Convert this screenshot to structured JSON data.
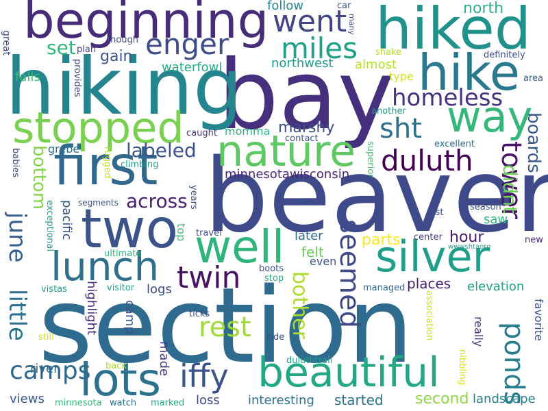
{
  "words": [
    {
      "text": "section",
      "color": "#2f6b8e"
    },
    {
      "text": "beaver",
      "color": "#3f4a8a"
    },
    {
      "text": "bay",
      "color": "#46307e"
    },
    {
      "text": "hiking",
      "color": "#25858e"
    },
    {
      "text": "hiked",
      "color": "#21918c"
    },
    {
      "text": "beginning",
      "color": "#472c7a"
    },
    {
      "text": "hike",
      "color": "#2a788e"
    },
    {
      "text": "first",
      "color": "#31688e"
    },
    {
      "text": "two",
      "color": "#3b528b"
    },
    {
      "text": "stopped",
      "color": "#7ad151"
    },
    {
      "text": "nature",
      "color": "#5ec962"
    },
    {
      "text": "way",
      "color": "#35b779"
    },
    {
      "text": "well",
      "color": "#2fb47c"
    },
    {
      "text": "silver",
      "color": "#1f9e89"
    },
    {
      "text": "lots",
      "color": "#2c728e"
    },
    {
      "text": "lunch",
      "color": "#2e6f8e"
    },
    {
      "text": "beautiful",
      "color": "#22a884"
    },
    {
      "text": "went",
      "color": "#414487"
    },
    {
      "text": "enger",
      "color": "#3e4c8a"
    },
    {
      "text": "miles",
      "color": "#1fa187"
    },
    {
      "text": "homeless",
      "color": "#46337f"
    },
    {
      "text": "duluth",
      "color": "#440154"
    },
    {
      "text": "sht",
      "color": "#2c728e"
    },
    {
      "text": "tower",
      "color": "#481467"
    },
    {
      "text": "boards",
      "color": "#38588c"
    },
    {
      "text": "ponds",
      "color": "#277f8e"
    },
    {
      "text": "twin",
      "color": "#471164"
    },
    {
      "text": "iffy",
      "color": "#3b528b"
    },
    {
      "text": "little",
      "color": "#2d708e"
    },
    {
      "text": "june",
      "color": "#355f8d"
    },
    {
      "text": "camps",
      "color": "#31688e"
    },
    {
      "text": "rest",
      "color": "#a0da39"
    },
    {
      "text": "seemed",
      "color": "#3e4a89"
    },
    {
      "text": "across",
      "color": "#482173"
    },
    {
      "text": "bottom",
      "color": "#84d44b"
    },
    {
      "text": "labeled",
      "color": "#3b528b"
    },
    {
      "text": "set",
      "color": "#31b57b"
    },
    {
      "text": "gain",
      "color": "#3a548c"
    },
    {
      "text": "north",
      "color": "#2db27d"
    },
    {
      "text": "follow",
      "color": "#25848e"
    },
    {
      "text": "northwest",
      "color": "#1f998a"
    },
    {
      "text": "almost",
      "color": "#b5de2b"
    },
    {
      "text": "waterfowl",
      "color": "#25ab82"
    },
    {
      "text": "falls",
      "color": "#3fbc73"
    },
    {
      "text": "marshy",
      "color": "#3d4e8a"
    },
    {
      "text": "minnesotawisconsin",
      "color": "#482878"
    },
    {
      "text": "hour",
      "color": "#48186a"
    },
    {
      "text": "bother",
      "color": "#addc30"
    },
    {
      "text": "parts",
      "color": "#fde725"
    },
    {
      "text": "felt",
      "color": "#6ccd5a"
    },
    {
      "text": "later",
      "color": "#31688e"
    },
    {
      "text": "even",
      "color": "#3b528b"
    },
    {
      "text": "places",
      "color": "#481f70"
    },
    {
      "text": "elevation",
      "color": "#1fa088"
    },
    {
      "text": "pacific",
      "color": "#3b528b"
    },
    {
      "text": "logs",
      "color": "#3d4d8a"
    },
    {
      "text": "highlight",
      "color": "#472d7b"
    },
    {
      "text": "made",
      "color": "#453882"
    },
    {
      "text": "camp",
      "color": "#3b528b"
    },
    {
      "text": "second",
      "color": "#8fd744"
    },
    {
      "text": "started",
      "color": "#2c738e"
    },
    {
      "text": "loss",
      "color": "#3f4788"
    },
    {
      "text": "interesting",
      "color": "#2c728e"
    },
    {
      "text": "landscape",
      "color": "#277f8e"
    },
    {
      "text": "views",
      "color": "#38588c"
    },
    {
      "text": "river",
      "color": "#31688e"
    },
    {
      "text": "didnt",
      "color": "#6ece58"
    },
    {
      "text": "saw",
      "color": "#31b57b"
    },
    {
      "text": "favorite",
      "color": "#3b528b"
    },
    {
      "text": "really",
      "color": "#46337f"
    },
    {
      "text": "shake",
      "color": "#b8de29"
    },
    {
      "text": "type",
      "color": "#d2e21b"
    },
    {
      "text": "definitely",
      "color": "#3e4989"
    },
    {
      "text": "area",
      "color": "#355f8d"
    },
    {
      "text": "another",
      "color": "#1f9a8a"
    },
    {
      "text": "excellent",
      "color": "#2d708e"
    },
    {
      "text": "superior",
      "color": "#44bf70"
    },
    {
      "text": "top",
      "color": "#3fbc73"
    },
    {
      "text": "season",
      "color": "#3b528b"
    },
    {
      "text": "last",
      "color": "#3e4c8a"
    },
    {
      "text": "center",
      "color": "#433e85"
    },
    {
      "text": "wwwshtaorg",
      "color": "#1f9e89"
    },
    {
      "text": "new",
      "color": "#482475"
    },
    {
      "text": "car",
      "color": "#3b528b"
    },
    {
      "text": "many",
      "color": "#3e4a89"
    },
    {
      "text": "great",
      "color": "#3e4a89"
    },
    {
      "text": "plan",
      "color": "#423f85"
    },
    {
      "text": "though",
      "color": "#3e4c8a"
    },
    {
      "text": "provides",
      "color": "#414487"
    },
    {
      "text": "caught",
      "color": "#443983"
    },
    {
      "text": "momma",
      "color": "#2eb37c"
    },
    {
      "text": "contact",
      "color": "#3b528b"
    },
    {
      "text": "grebe",
      "color": "#2d708e"
    },
    {
      "text": "climbing",
      "color": "#1fa088"
    },
    {
      "text": "rugged",
      "color": "#c2df23"
    },
    {
      "text": "babies",
      "color": "#3e4a89"
    },
    {
      "text": "segments",
      "color": "#3b528b"
    },
    {
      "text": "years",
      "color": "#3e4c8a"
    },
    {
      "text": "exceptional",
      "color": "#1f9e89"
    },
    {
      "text": "ultimate",
      "color": "#2fb47c"
    },
    {
      "text": "travel",
      "color": "#3e4c8a"
    },
    {
      "text": "boots",
      "color": "#3b528b"
    },
    {
      "text": "stop",
      "color": "#27ad81"
    },
    {
      "text": "managed",
      "color": "#31688e"
    },
    {
      "text": "association",
      "color": "#d0e11c"
    },
    {
      "text": "vistas",
      "color": "#1f9e89"
    },
    {
      "text": "visitor",
      "color": "#20a486"
    },
    {
      "text": "ticks",
      "color": "#3e4989"
    },
    {
      "text": "ride",
      "color": "#3e4a89"
    },
    {
      "text": "still",
      "color": "#d0e11c"
    },
    {
      "text": "back",
      "color": "#addc30"
    },
    {
      "text": "duluthtrail",
      "color": "#1fa287"
    },
    {
      "text": "nibbling",
      "color": "#d8e219"
    },
    {
      "text": "minnesota",
      "color": "#35b779"
    },
    {
      "text": "watch",
      "color": "#2d708e"
    },
    {
      "text": "marked",
      "color": "#24aa83"
    }
  ]
}
